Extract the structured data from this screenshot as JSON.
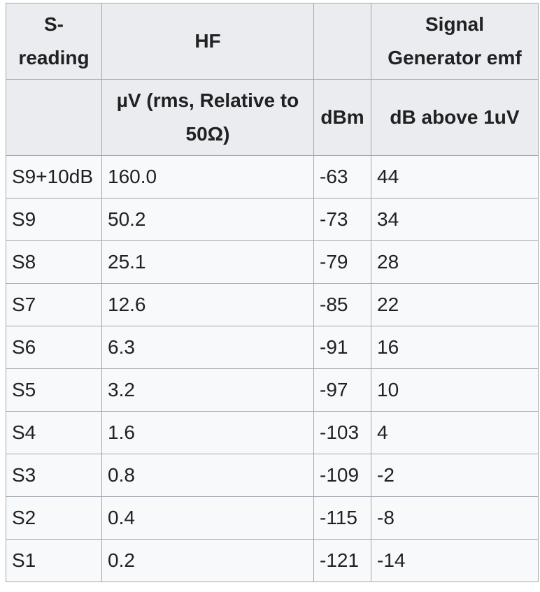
{
  "table": {
    "header": {
      "s_reading": "S-reading",
      "hf": "HF",
      "signal_generator": "Signal Generator emf"
    },
    "subheader": {
      "uv": "µV (rms, Relative to 50Ω)",
      "dbm": "dBm",
      "db_above": "dB above 1uV"
    },
    "rows": [
      [
        "S9+10dB",
        "160.0",
        "-63",
        "44"
      ],
      [
        "S9",
        "50.2",
        "-73",
        "34"
      ],
      [
        "S8",
        "25.1",
        "-79",
        "28"
      ],
      [
        "S7",
        "12.6",
        "-85",
        "22"
      ],
      [
        "S6",
        "6.3",
        "-91",
        "16"
      ],
      [
        "S5",
        "3.2",
        "-97",
        "10"
      ],
      [
        "S4",
        "1.6",
        "-103",
        "4"
      ],
      [
        "S3",
        "0.8",
        "-109",
        "-2"
      ],
      [
        "S2",
        "0.4",
        "-115",
        "-8"
      ],
      [
        "S1",
        "0.2",
        "-121",
        "-14"
      ]
    ]
  }
}
